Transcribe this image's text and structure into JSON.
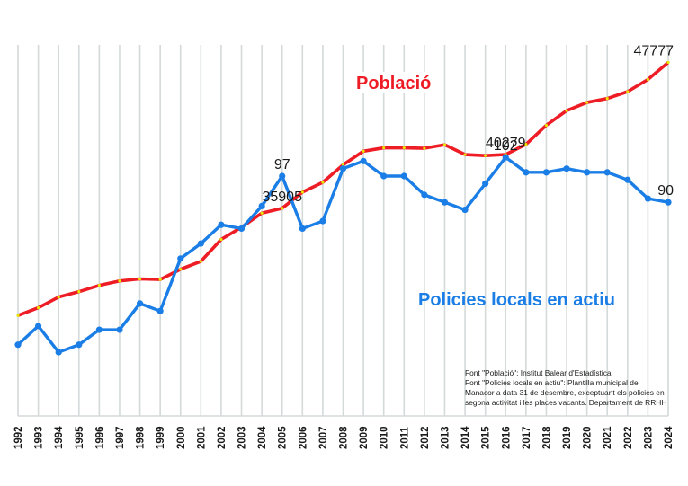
{
  "chart_data": {
    "type": "line",
    "title": "",
    "xlabel": "",
    "ylabel": "",
    "grid": "vertical",
    "x": [
      "1992",
      "1993",
      "1994",
      "1995",
      "1996",
      "1997",
      "1998",
      "1999",
      "2000",
      "2001",
      "2002",
      "2003",
      "2004",
      "2005",
      "2006",
      "2007",
      "2008",
      "2009",
      "2010",
      "2011",
      "2012",
      "2013",
      "2014",
      "2015",
      "2016",
      "2017",
      "2018",
      "2019",
      "2020",
      "2021",
      "2022",
      "2023",
      "2024"
    ],
    "series": [
      {
        "name": "Població",
        "color": "#ee1c25",
        "marker_color": "#e6e600",
        "values": [
          27175,
          27806,
          28676,
          29116,
          29628,
          29986,
          30152,
          30105,
          30939,
          31582,
          33368,
          34357,
          35512,
          35905,
          37215,
          38013,
          39442,
          40550,
          40824,
          40824,
          40788,
          41074,
          40276,
          40193,
          40279,
          41110,
          42658,
          43849,
          44516,
          44838,
          45397,
          46386,
          47777
        ],
        "data_labels": [
          {
            "x": "2005",
            "text": "35905"
          },
          {
            "x": "2016",
            "text": "40279"
          },
          {
            "x": "2024",
            "text": "47777"
          }
        ],
        "ylim": [
          19000,
          49200
        ]
      },
      {
        "name": "Policies locals en actiu",
        "color": "#1a7ee6",
        "marker_color": "#1a7ee6",
        "values": [
          52,
          57,
          50,
          52,
          56,
          56,
          63,
          61,
          75,
          79,
          84,
          83,
          89,
          97,
          83,
          85,
          99,
          101,
          97,
          97,
          92,
          90,
          88,
          95,
          102,
          98,
          98,
          99,
          98,
          98,
          96,
          91,
          90
        ],
        "data_labels": [
          {
            "x": "2005",
            "text": "97"
          },
          {
            "x": "2016",
            "text": "102"
          },
          {
            "x": "2024",
            "text": "90"
          }
        ],
        "ylim": [
          33,
          132
        ]
      }
    ],
    "legend": [
      {
        "text": "Població",
        "placement": "top-center"
      },
      {
        "text": "Policies locals en actiu",
        "placement": "center-right"
      }
    ],
    "annotations": [
      "Font \"Població\": Institut Balear d'Estadística",
      "Font \"Policies locals en actiu\": Plantilla municipal de",
      "Manacor a data 31 de desembre, exceptuant els policies en",
      "segona activitat i les places vacants. Departament de RRHH"
    ]
  }
}
